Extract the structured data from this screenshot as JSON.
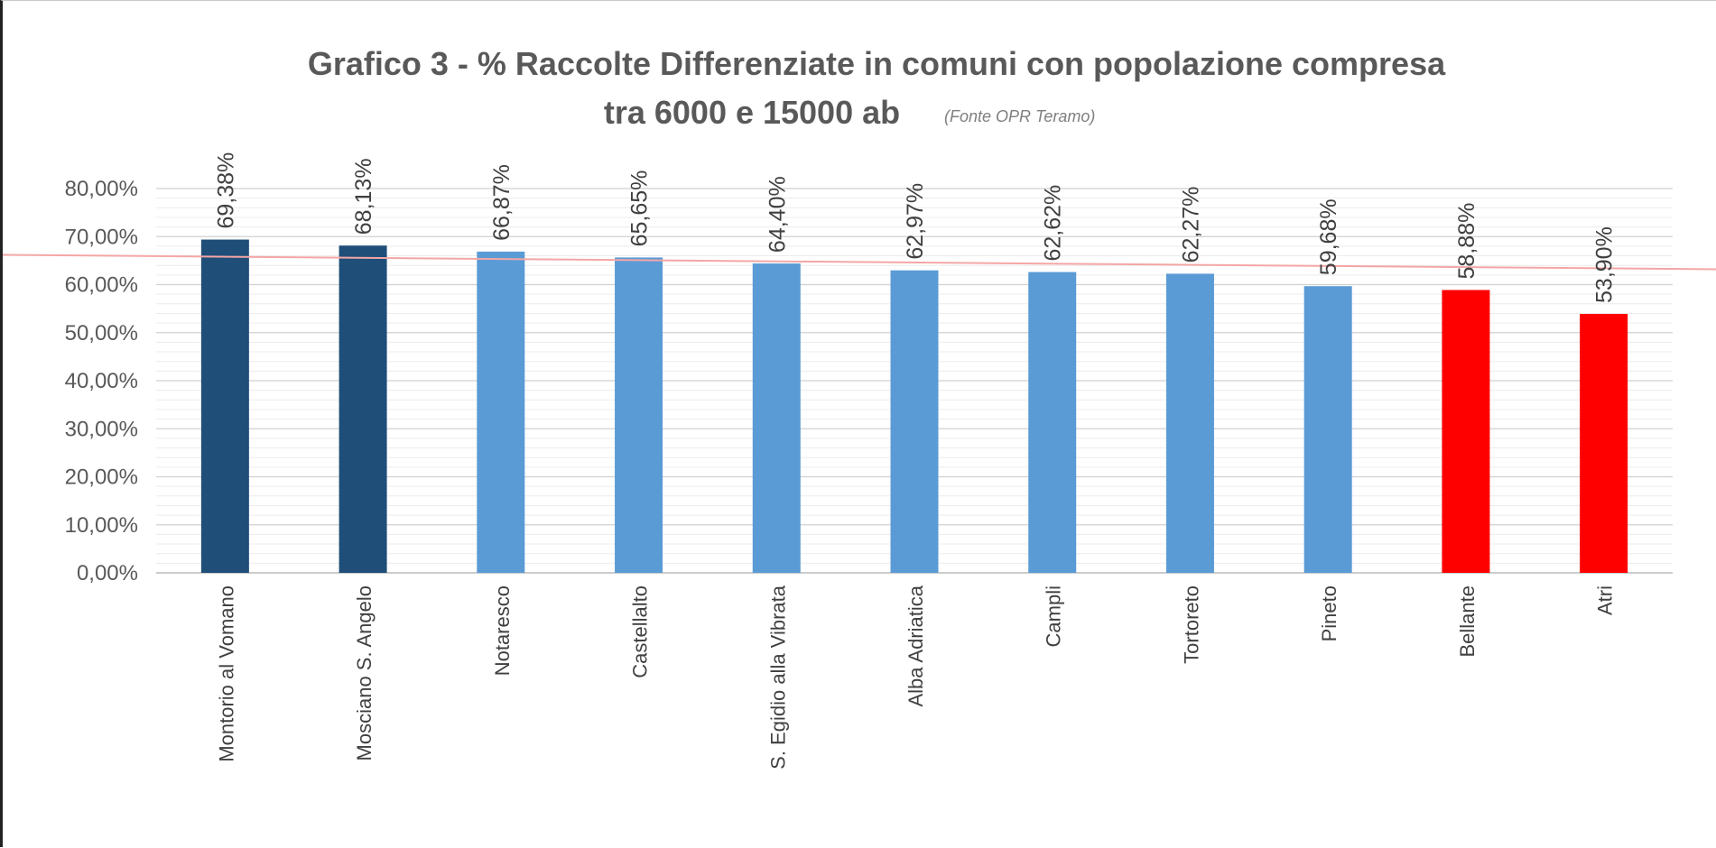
{
  "chart_data": {
    "type": "bar",
    "title_line1": "Grafico 3 - % Raccolte Differenziate in comuni con popolazione   compresa",
    "title_line2": "tra 6000 e 15000 ab",
    "source": "(Fonte OPR Teramo)",
    "xlabel": "",
    "ylabel": "",
    "ylim": [
      0,
      80
    ],
    "y_ticks": [
      "0,00%",
      "10,00%",
      "20,00%",
      "30,00%",
      "40,00%",
      "50,00%",
      "60,00%",
      "70,00%",
      "80,00%"
    ],
    "categories": [
      "Montorio al Vomano",
      "Mosciano S. Angelo",
      "Notaresco",
      "Castellalto",
      "S. Egidio alla Vibrata",
      "Alba Adriatica",
      "Campli",
      "Tortoreto",
      "Pineto",
      "Bellante",
      "Atri"
    ],
    "values": [
      69.38,
      68.13,
      66.87,
      65.65,
      64.4,
      62.97,
      62.62,
      62.27,
      59.68,
      58.88,
      53.9
    ],
    "data_labels": [
      "69,38%",
      "68,13%",
      "66,87%",
      "65,65%",
      "64,40%",
      "62,97%",
      "62,62%",
      "62,27%",
      "59,68%",
      "58,88%",
      "53,90%"
    ],
    "bar_colors": [
      "#1f4e79",
      "#1f4e79",
      "#5b9bd5",
      "#5b9bd5",
      "#5b9bd5",
      "#5b9bd5",
      "#5b9bd5",
      "#5b9bd5",
      "#5b9bd5",
      "#ff0000",
      "#ff0000"
    ],
    "trend_line": {
      "start_value": 66.2,
      "end_value": 63.2,
      "color": "#f4a6a6"
    },
    "grid": true,
    "legend": "none"
  }
}
